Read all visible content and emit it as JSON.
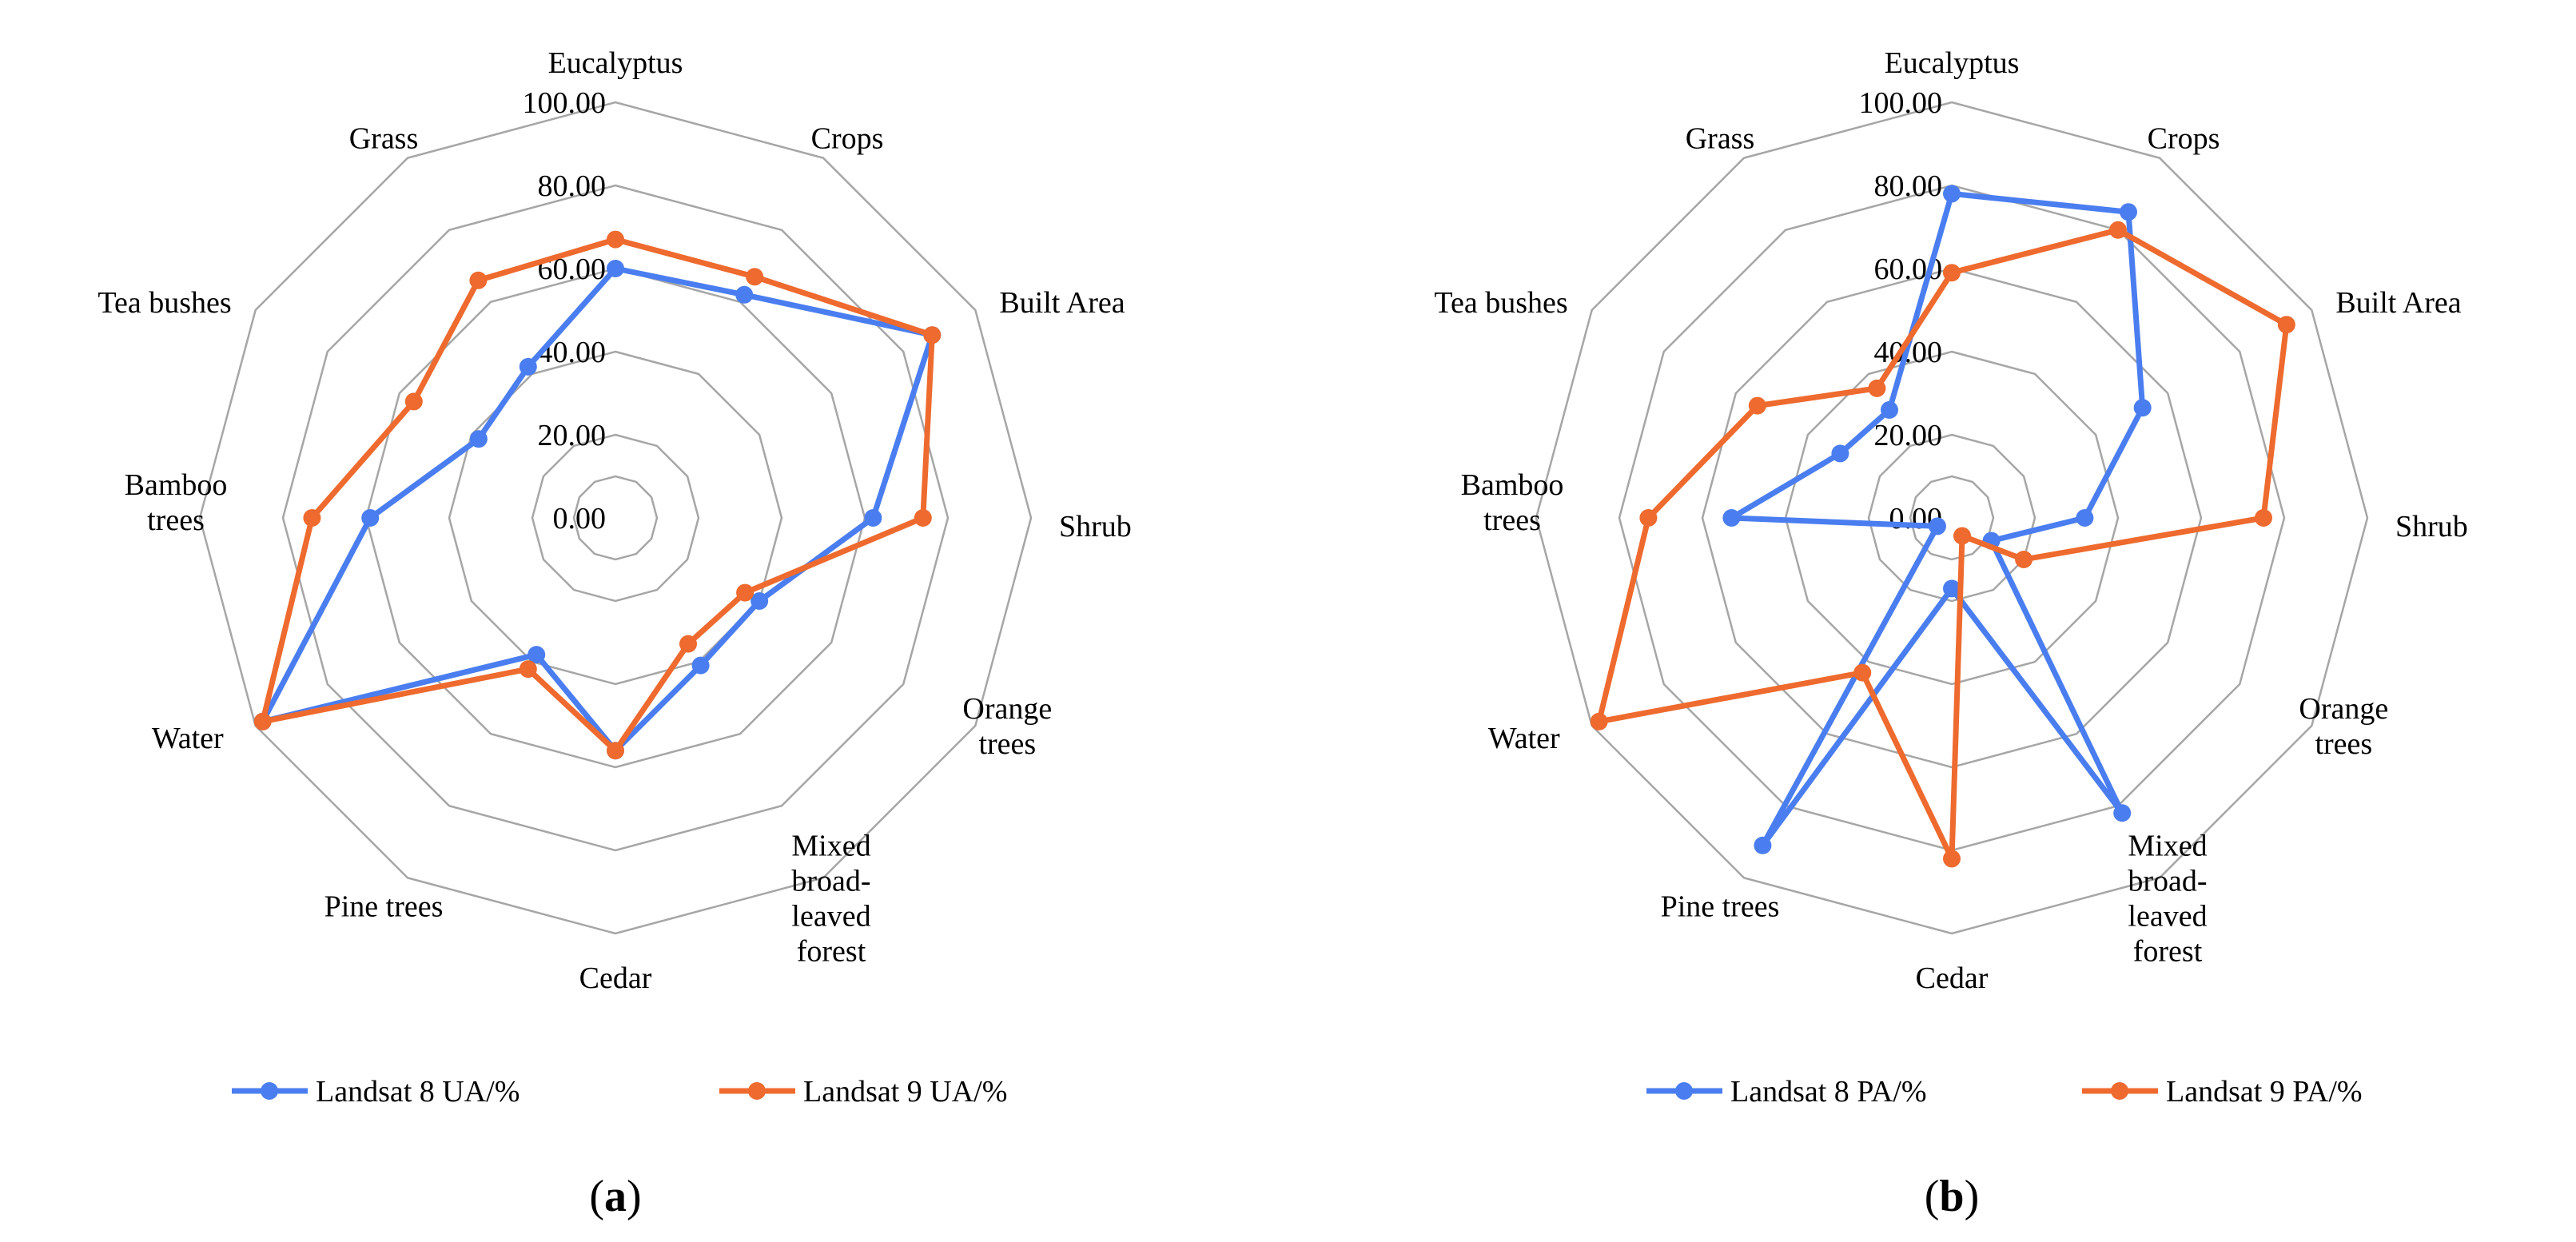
{
  "chart_data": [
    {
      "type": "radar",
      "panel_label": "a",
      "categories": [
        "Eucalyptus",
        "Crops",
        "Built Area",
        "Shrub",
        "Orange trees",
        "Mixed broad-leaved forest",
        "Cedar",
        "Pine trees",
        "Water",
        "Bamboo trees",
        "Tea bushes",
        "Grass"
      ],
      "category_lines": [
        [
          "Eucalyptus"
        ],
        [
          "Crops"
        ],
        [
          "Built Area"
        ],
        [
          "Shrub"
        ],
        [
          "Orange",
          "trees"
        ],
        [
          "Mixed",
          "broad-",
          "leaved",
          "forest"
        ],
        [
          "Cedar"
        ],
        [
          "Pine trees"
        ],
        [
          "Water"
        ],
        [
          "Bamboo",
          "trees"
        ],
        [
          "Tea bushes"
        ],
        [
          "Grass"
        ]
      ],
      "rlim": [
        0,
        100
      ],
      "ticks": [
        0,
        20,
        40,
        60,
        80,
        100
      ],
      "tick_labels": [
        "0.00",
        "20.00",
        "40.00",
        "60.00",
        "80.00",
        "100.00"
      ],
      "series": [
        {
          "name": "Landsat 8 UA/%",
          "color": "#4a7ef0",
          "values": [
            60,
            62,
            88,
            62,
            40,
            41,
            56,
            38,
            98,
            59,
            38,
            42
          ]
        },
        {
          "name": "Landsat 9 UA/%",
          "color": "#ee6a2e",
          "values": [
            67,
            67,
            88,
            74,
            36,
            35,
            56,
            42,
            98,
            73,
            56,
            66
          ]
        }
      ]
    },
    {
      "type": "radar",
      "panel_label": "b",
      "categories": [
        "Eucalyptus",
        "Crops",
        "Built Area",
        "Shrub",
        "Orange trees",
        "Mixed broad-leaved forest",
        "Cedar",
        "Pine trees",
        "Water",
        "Bamboo trees",
        "Tea bushes",
        "Grass"
      ],
      "category_lines": [
        [
          "Eucalyptus"
        ],
        [
          "Crops"
        ],
        [
          "Built Area"
        ],
        [
          "Shrub"
        ],
        [
          "Orange",
          "trees"
        ],
        [
          "Mixed",
          "broad-",
          "leaved",
          "forest"
        ],
        [
          "Cedar"
        ],
        [
          "Pine trees"
        ],
        [
          "Water"
        ],
        [
          "Bamboo",
          "trees"
        ],
        [
          "Tea bushes"
        ],
        [
          "Grass"
        ]
      ],
      "rlim": [
        0,
        100
      ],
      "ticks": [
        0,
        20,
        40,
        60,
        80,
        100
      ],
      "tick_labels": [
        "0.00",
        "20.00",
        "40.00",
        "60.00",
        "80.00",
        "100.00"
      ],
      "series": [
        {
          "name": "Landsat 8 PA/%",
          "color": "#4a7ef0",
          "values": [
            78,
            85,
            53,
            32,
            11,
            82,
            17,
            91,
            4,
            53,
            31,
            30
          ]
        },
        {
          "name": "Landsat 9 PA/%",
          "color": "#ee6a2e",
          "values": [
            59,
            80,
            93,
            75,
            20,
            5,
            82,
            43,
            98,
            73,
            54,
            36
          ]
        }
      ]
    }
  ]
}
